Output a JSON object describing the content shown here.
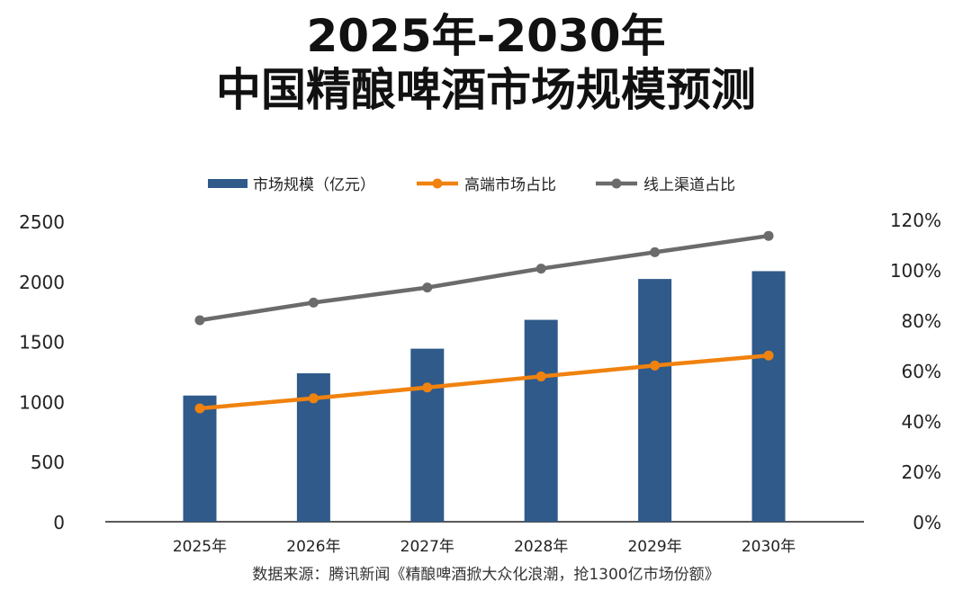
{
  "title_line1": "2025年-2030年",
  "title_line2": "中国精酿啤酒市场规模预测",
  "source": "数据来源：腾讯新闻《精酿啤酒掀大众化浪潮，抢1300亿市场份额》",
  "chart_data": {
    "type": "bar",
    "categories": [
      "2025年",
      "2026年",
      "2027年",
      "2028年",
      "2029年",
      "2030年"
    ],
    "series": [
      {
        "name": "市场规模（亿元）",
        "type": "bar",
        "axis": "left",
        "color": "#2f5a8a",
        "values": [
          1050,
          1235,
          1440,
          1680,
          2020,
          2085
        ]
      },
      {
        "name": "高端市场占比",
        "type": "line",
        "axis": "right",
        "color": "#f0820f",
        "values": [
          45,
          49,
          53.3,
          57.7,
          62,
          66
        ]
      },
      {
        "name": "线上渠道占比",
        "type": "line",
        "axis": "right",
        "color": "#6b6b6b",
        "values": [
          80,
          87,
          93,
          100.5,
          107,
          113.5
        ]
      }
    ],
    "left_axis": {
      "ylim": [
        0,
        2500
      ],
      "ticks": [
        "0",
        "500",
        "1000",
        "1500",
        "2000",
        "2500"
      ]
    },
    "right_axis": {
      "ylim": [
        0,
        120
      ],
      "ticks": [
        "0%",
        "20%",
        "40%",
        "60%",
        "80%",
        "100%",
        "120%"
      ]
    },
    "legend_position": "top",
    "grid": false
  }
}
